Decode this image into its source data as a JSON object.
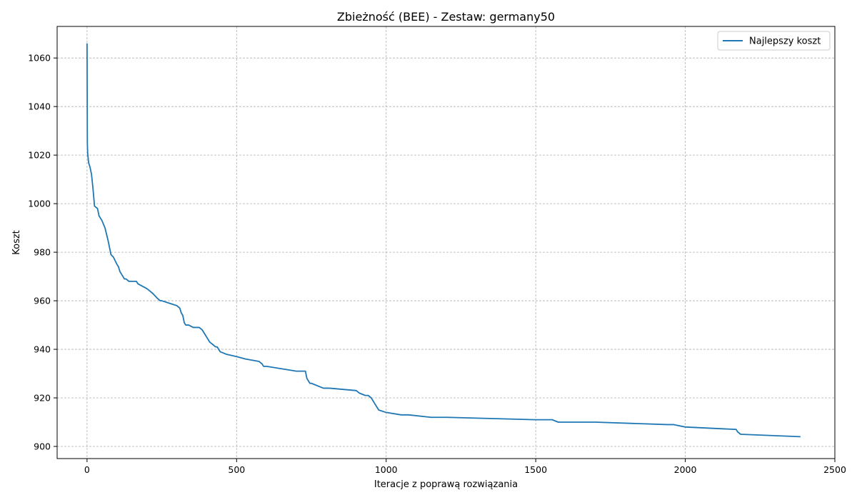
{
  "chart_data": {
    "type": "line",
    "title": "Zbieżność (BEE) - Zestaw: germany50",
    "xlabel": "Iteracje z poprawą rozwiązania",
    "ylabel": "Koszt",
    "xlim": [
      -100,
      2500
    ],
    "ylim": [
      895,
      1073
    ],
    "xticks": [
      0,
      500,
      1000,
      1500,
      2000,
      2500
    ],
    "yticks": [
      900,
      920,
      940,
      960,
      980,
      1000,
      1020,
      1040,
      1060
    ],
    "grid": true,
    "legend_position": "top-right",
    "series": [
      {
        "name": "Najlepszy koszt",
        "color": "#1f77b4",
        "x": [
          0,
          1,
          2,
          5,
          10,
          15,
          20,
          25,
          35,
          40,
          50,
          60,
          70,
          80,
          88,
          100,
          105,
          110,
          115,
          125,
          130,
          140,
          165,
          170,
          200,
          210,
          220,
          235,
          245,
          250,
          275,
          300,
          310,
          315,
          320,
          325,
          330,
          340,
          355,
          375,
          385,
          390,
          395,
          400,
          405,
          410,
          420,
          430,
          435,
          445,
          465,
          500,
          530,
          575,
          585,
          590,
          600,
          650,
          700,
          730,
          735,
          740,
          745,
          750,
          790,
          810,
          900,
          910,
          930,
          940,
          950,
          960,
          970,
          975,
          1000,
          1050,
          1075,
          1150,
          1200,
          1500,
          1555,
          1575,
          1585,
          1700,
          1940,
          1960,
          2000,
          2170,
          2175,
          2185,
          2385
        ],
        "y": [
          1066,
          1025,
          1021,
          1017,
          1015,
          1012,
          1006,
          999,
          998,
          995,
          993,
          990,
          985,
          979,
          978,
          975,
          974,
          972,
          971,
          969,
          969,
          968,
          968,
          967,
          965,
          964,
          963,
          961,
          960,
          960,
          959,
          958,
          957,
          955,
          954,
          951,
          950,
          950,
          949,
          949,
          948,
          947,
          946,
          945,
          944,
          943,
          942,
          941,
          941,
          939,
          938,
          937,
          936,
          935,
          934,
          933,
          933,
          932,
          931,
          931,
          928,
          927,
          926,
          926,
          924,
          924,
          923,
          922,
          921,
          921,
          920,
          918,
          916,
          915,
          914,
          913,
          913,
          912,
          912,
          911,
          911,
          910,
          910,
          910,
          909,
          909,
          908,
          907,
          906,
          905,
          904
        ]
      }
    ]
  }
}
